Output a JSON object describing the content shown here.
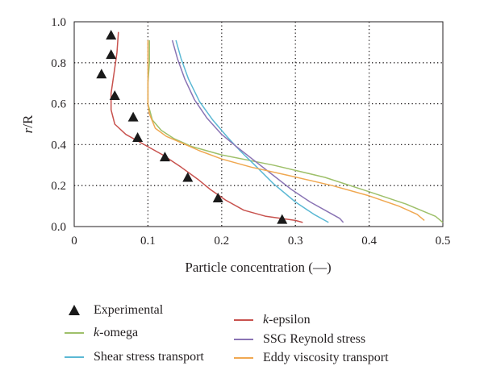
{
  "chart_data": {
    "type": "line",
    "title": "",
    "xlabel": "Particle concentration (—)",
    "ylabel_italic": "r",
    "ylabel_rest": "/R",
    "xlim": [
      0,
      0.5
    ],
    "ylim": [
      0,
      1.0
    ],
    "x_ticks": [
      "0",
      "0.1",
      "0.2",
      "0.3",
      "0.4",
      "0.5"
    ],
    "y_ticks": [
      "0.0",
      "0.2",
      "0.4",
      "0.6",
      "0.8",
      "1.0"
    ],
    "grid": "dotted",
    "legend_position": "bottom",
    "experimental": {
      "name": "Experimental",
      "x": [
        0.05,
        0.05,
        0.037,
        0.055,
        0.08,
        0.086,
        0.123,
        0.154,
        0.195,
        0.282
      ],
      "y": [
        0.935,
        0.84,
        0.745,
        0.64,
        0.535,
        0.435,
        0.34,
        0.24,
        0.14,
        0.035
      ]
    },
    "series": [
      {
        "name_italic": "k",
        "name_rest": "-omega",
        "color": "#9ec06a",
        "x": [
          0.102,
          0.102,
          0.1,
          0.1,
          0.106,
          0.118,
          0.135,
          0.16,
          0.2,
          0.27,
          0.34,
          0.4,
          0.45,
          0.49,
          0.5
        ],
        "y": [
          0.91,
          0.8,
          0.7,
          0.6,
          0.52,
          0.47,
          0.43,
          0.39,
          0.35,
          0.3,
          0.24,
          0.17,
          0.11,
          0.05,
          0.02
        ]
      },
      {
        "name_italic": "",
        "name_rest": "Shear stress transport",
        "color": "#5bb8d4",
        "x": [
          0.138,
          0.145,
          0.155,
          0.17,
          0.188,
          0.207,
          0.225,
          0.245,
          0.27,
          0.3,
          0.325,
          0.345
        ],
        "y": [
          0.91,
          0.82,
          0.72,
          0.61,
          0.52,
          0.44,
          0.37,
          0.3,
          0.21,
          0.12,
          0.06,
          0.02
        ]
      },
      {
        "name_italic": "k",
        "name_rest": "-epsilon",
        "color": "#c8524e",
        "x": [
          0.06,
          0.058,
          0.054,
          0.05,
          0.05,
          0.055,
          0.07,
          0.095,
          0.12,
          0.145,
          0.168,
          0.185,
          0.205,
          0.23,
          0.26,
          0.3,
          0.31
        ],
        "y": [
          0.95,
          0.85,
          0.75,
          0.65,
          0.57,
          0.5,
          0.45,
          0.4,
          0.35,
          0.29,
          0.23,
          0.18,
          0.13,
          0.08,
          0.05,
          0.03,
          0.02
        ]
      },
      {
        "name_italic": "",
        "name_rest": "SSG Reynold stress",
        "color": "#8a74b4",
        "x": [
          0.133,
          0.14,
          0.15,
          0.163,
          0.18,
          0.2,
          0.22,
          0.245,
          0.27,
          0.295,
          0.32,
          0.345,
          0.36,
          0.365
        ],
        "y": [
          0.91,
          0.82,
          0.72,
          0.62,
          0.53,
          0.45,
          0.39,
          0.32,
          0.25,
          0.18,
          0.12,
          0.07,
          0.04,
          0.02
        ]
      },
      {
        "name_italic": "",
        "name_rest": "Eddy viscosity transport",
        "color": "#f0a851",
        "x": [
          0.1,
          0.1,
          0.1,
          0.1,
          0.1,
          0.102,
          0.11,
          0.125,
          0.145,
          0.17,
          0.2,
          0.24,
          0.29,
          0.35,
          0.4,
          0.44,
          0.465,
          0.475
        ],
        "y": [
          0.91,
          0.86,
          0.8,
          0.7,
          0.6,
          0.55,
          0.48,
          0.44,
          0.41,
          0.37,
          0.33,
          0.29,
          0.25,
          0.2,
          0.15,
          0.1,
          0.06,
          0.03
        ]
      }
    ]
  }
}
